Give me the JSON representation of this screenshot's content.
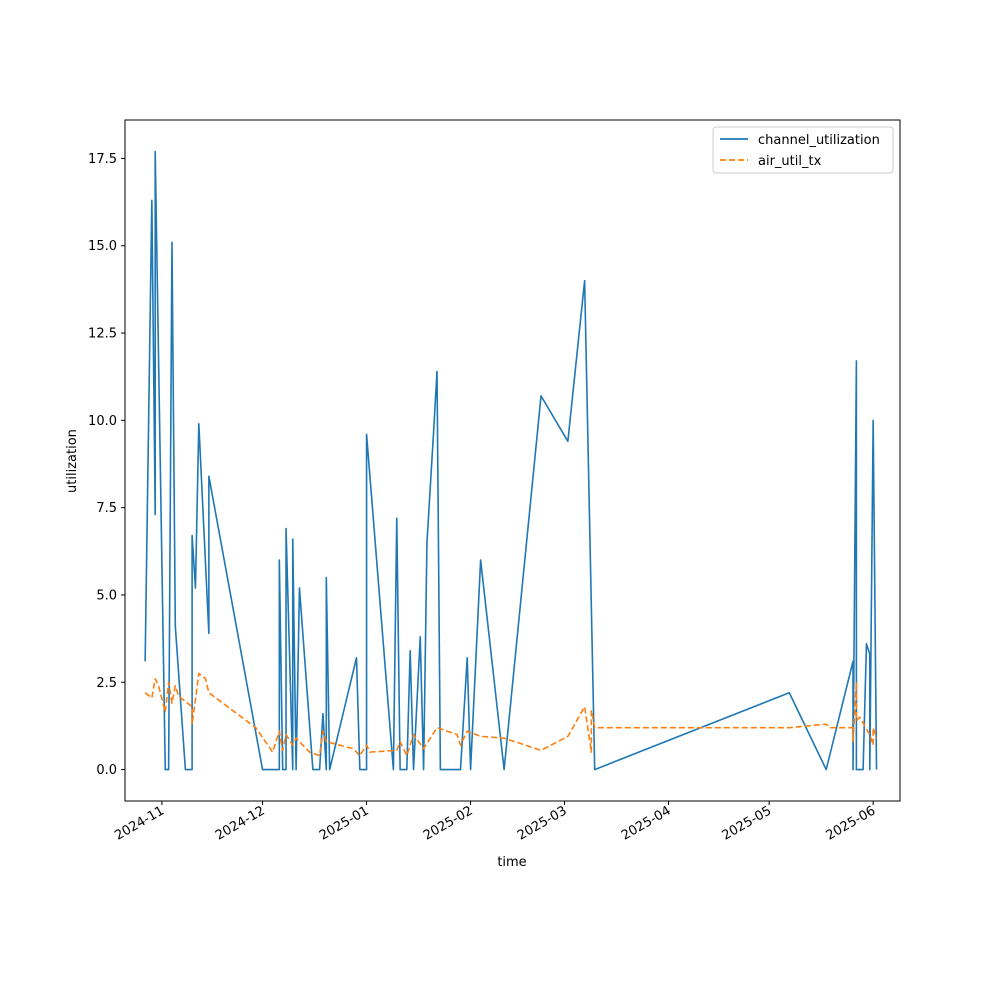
{
  "chart_data": {
    "type": "line",
    "title": "",
    "xlabel": "time",
    "ylabel": "utilization",
    "xlim": [
      "2024-10-21",
      "2025-06-09"
    ],
    "ylim": [
      -0.9,
      18.6
    ],
    "yticks": [
      0.0,
      2.5,
      5.0,
      7.5,
      10.0,
      12.5,
      15.0,
      17.5
    ],
    "ytick_labels": [
      "0.0",
      "2.5",
      "5.0",
      "7.5",
      "10.0",
      "12.5",
      "15.0",
      "17.5"
    ],
    "xticks": [
      "2024-11-01",
      "2024-12-01",
      "2025-01-01",
      "2025-02-01",
      "2025-03-01",
      "2025-04-01",
      "2025-05-01",
      "2025-06-01"
    ],
    "xtick_labels": [
      "2024-11",
      "2024-12",
      "2025-01",
      "2025-02",
      "2025-03",
      "2025-04",
      "2025-05",
      "2025-06"
    ],
    "grid": false,
    "legend_position": "top-right",
    "series": [
      {
        "name": "channel_utilization",
        "color": "#1f77b4",
        "style": "solid",
        "points": [
          [
            "2024-10-27",
            3.1
          ],
          [
            "2024-10-29",
            16.3
          ],
          [
            "2024-10-30",
            7.3
          ],
          [
            "2024-10-30",
            17.7
          ],
          [
            "2024-11-02",
            0.0
          ],
          [
            "2024-11-03",
            0.0
          ],
          [
            "2024-11-04",
            15.1
          ],
          [
            "2024-11-05",
            4.1
          ],
          [
            "2024-11-08",
            0.0
          ],
          [
            "2024-11-10",
            0.0
          ],
          [
            "2024-11-10",
            6.7
          ],
          [
            "2024-11-11",
            5.2
          ],
          [
            "2024-11-12",
            9.9
          ],
          [
            "2024-11-15",
            3.9
          ],
          [
            "2024-11-15",
            8.4
          ],
          [
            "2024-12-01",
            0.0
          ],
          [
            "2024-12-06",
            0.0
          ],
          [
            "2024-12-06",
            6.0
          ],
          [
            "2024-12-07",
            0.0
          ],
          [
            "2024-12-08",
            0.0
          ],
          [
            "2024-12-08",
            6.9
          ],
          [
            "2024-12-10",
            0.0
          ],
          [
            "2024-12-10",
            6.6
          ],
          [
            "2024-12-11",
            0.0
          ],
          [
            "2024-12-12",
            5.2
          ],
          [
            "2024-12-16",
            0.0
          ],
          [
            "2024-12-18",
            0.0
          ],
          [
            "2024-12-19",
            1.6
          ],
          [
            "2024-12-20",
            0.0
          ],
          [
            "2024-12-20",
            5.5
          ],
          [
            "2024-12-21",
            0.0
          ],
          [
            "2024-12-29",
            3.2
          ],
          [
            "2024-12-30",
            0.0
          ],
          [
            "2025-01-01",
            0.0
          ],
          [
            "2025-01-01",
            4.8
          ],
          [
            "2025-01-01",
            9.6
          ],
          [
            "2025-01-09",
            0.0
          ],
          [
            "2025-01-10",
            7.2
          ],
          [
            "2025-01-11",
            0.0
          ],
          [
            "2025-01-13",
            0.0
          ],
          [
            "2025-01-14",
            3.4
          ],
          [
            "2025-01-15",
            0.0
          ],
          [
            "2025-01-17",
            3.8
          ],
          [
            "2025-01-18",
            0.0
          ],
          [
            "2025-01-19",
            6.5
          ],
          [
            "2025-01-21",
            9.7
          ],
          [
            "2025-01-22",
            11.4
          ],
          [
            "2025-01-23",
            0.0
          ],
          [
            "2025-01-29",
            0.0
          ],
          [
            "2025-01-31",
            3.2
          ],
          [
            "2025-02-01",
            0.0
          ],
          [
            "2025-02-04",
            6.0
          ],
          [
            "2025-02-11",
            0.0
          ],
          [
            "2025-02-22",
            10.7
          ],
          [
            "2025-03-02",
            9.4
          ],
          [
            "2025-03-07",
            14.0
          ],
          [
            "2025-03-10",
            0.0
          ],
          [
            "2025-05-07",
            2.2
          ],
          [
            "2025-05-18",
            0.0
          ],
          [
            "2025-05-26",
            3.1
          ],
          [
            "2025-05-26",
            0.0
          ],
          [
            "2025-05-27",
            11.7
          ],
          [
            "2025-05-27",
            0.0
          ],
          [
            "2025-05-28",
            0.0
          ],
          [
            "2025-05-29",
            0.0
          ],
          [
            "2025-05-30",
            3.6
          ],
          [
            "2025-05-31",
            3.3
          ],
          [
            "2025-05-31",
            0.0
          ],
          [
            "2025-06-01",
            10.0
          ],
          [
            "2025-06-02",
            0.0
          ]
        ]
      },
      {
        "name": "air_util_tx",
        "color": "#ff7f0e",
        "style": "dashed",
        "points": [
          [
            "2024-10-27",
            2.2
          ],
          [
            "2024-10-29",
            2.05
          ],
          [
            "2024-10-30",
            2.6
          ],
          [
            "2024-10-31",
            2.4
          ],
          [
            "2024-11-02",
            1.65
          ],
          [
            "2024-11-03",
            2.5
          ],
          [
            "2024-11-04",
            1.9
          ],
          [
            "2024-11-05",
            2.4
          ],
          [
            "2024-11-06",
            2.1
          ],
          [
            "2024-11-10",
            1.8
          ],
          [
            "2024-11-10",
            1.3
          ],
          [
            "2024-11-11",
            2.0
          ],
          [
            "2024-11-12",
            2.75
          ],
          [
            "2024-11-14",
            2.6
          ],
          [
            "2024-11-15",
            2.2
          ],
          [
            "2024-11-29",
            1.2
          ],
          [
            "2024-12-04",
            0.5
          ],
          [
            "2024-12-06",
            1.1
          ],
          [
            "2024-12-07",
            0.55
          ],
          [
            "2024-12-08",
            1.0
          ],
          [
            "2024-12-10",
            0.7
          ],
          [
            "2024-12-11",
            0.9
          ],
          [
            "2024-12-15",
            0.5
          ],
          [
            "2024-12-18",
            0.4
          ],
          [
            "2024-12-19",
            1.1
          ],
          [
            "2024-12-20",
            0.8
          ],
          [
            "2024-12-28",
            0.6
          ],
          [
            "2024-12-30",
            0.4
          ],
          [
            "2025-01-01",
            0.7
          ],
          [
            "2025-01-02",
            0.5
          ],
          [
            "2025-01-10",
            0.55
          ],
          [
            "2025-01-11",
            0.8
          ],
          [
            "2025-01-13",
            0.4
          ],
          [
            "2025-01-15",
            1.0
          ],
          [
            "2025-01-18",
            0.6
          ],
          [
            "2025-01-22",
            1.2
          ],
          [
            "2025-01-28",
            1.0
          ],
          [
            "2025-01-29",
            0.7
          ],
          [
            "2025-01-31",
            1.1
          ],
          [
            "2025-02-04",
            0.95
          ],
          [
            "2025-02-11",
            0.9
          ],
          [
            "2025-02-22",
            0.55
          ],
          [
            "2025-03-02",
            0.95
          ],
          [
            "2025-03-07",
            1.8
          ],
          [
            "2025-03-09",
            0.5
          ],
          [
            "2025-03-09",
            1.7
          ],
          [
            "2025-03-10",
            1.2
          ],
          [
            "2025-05-07",
            1.2
          ],
          [
            "2025-05-18",
            1.3
          ],
          [
            "2025-05-19",
            1.2
          ],
          [
            "2025-05-26",
            1.2
          ],
          [
            "2025-05-26",
            0.8
          ],
          [
            "2025-05-27",
            2.5
          ],
          [
            "2025-05-27",
            1.4
          ],
          [
            "2025-05-28",
            1.5
          ],
          [
            "2025-05-31",
            1.0
          ],
          [
            "2025-06-01",
            0.7
          ],
          [
            "2025-06-01",
            1.2
          ],
          [
            "2025-06-02",
            0.9
          ]
        ]
      }
    ]
  }
}
